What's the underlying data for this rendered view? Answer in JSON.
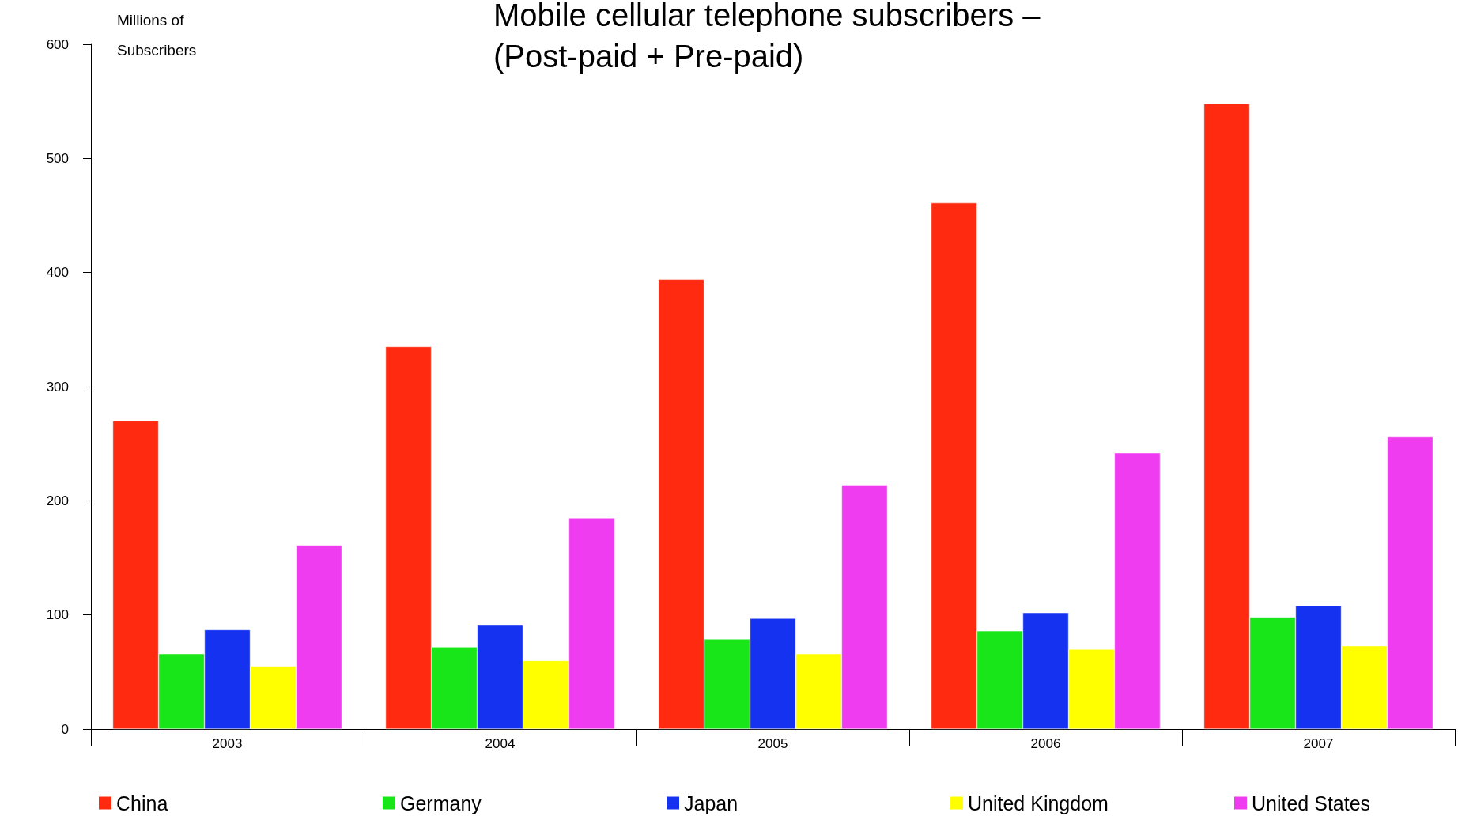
{
  "chart_data": {
    "type": "bar",
    "title": "Mobile cellular telephone subscribers –\n(Post-paid + Pre-paid)",
    "ylabel": "Millions of\nSubscribers",
    "categories": [
      "2003",
      "2004",
      "2005",
      "2006",
      "2007"
    ],
    "series": [
      {
        "name": "China",
        "color": "#ff2a0f",
        "values": [
          270,
          335,
          394,
          461,
          548
        ]
      },
      {
        "name": "Germany",
        "color": "#19e619",
        "values": [
          66,
          72,
          79,
          86,
          98
        ]
      },
      {
        "name": "Japan",
        "color": "#1432f0",
        "values": [
          87,
          91,
          97,
          102,
          108
        ]
      },
      {
        "name": "United Kingdom",
        "color": "#ffff00",
        "values": [
          55,
          60,
          66,
          70,
          73
        ]
      },
      {
        "name": "United States",
        "color": "#f03cf0",
        "values": [
          161,
          185,
          214,
          242,
          256
        ]
      }
    ],
    "ylim": [
      0,
      600
    ],
    "yticks": [
      0,
      100,
      200,
      300,
      400,
      500,
      600
    ],
    "grid": false,
    "legend": "bottom"
  }
}
